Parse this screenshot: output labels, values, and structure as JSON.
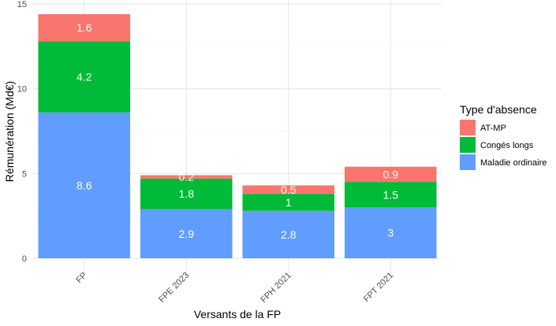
{
  "chart_data": {
    "type": "bar",
    "stacked": true,
    "title": "",
    "xlabel": "Versants de la FP",
    "ylabel": "Rémunération (Md€)",
    "categories": [
      "FP",
      "FPE 2023",
      "FPH 2021",
      "FPT 2021"
    ],
    "series": [
      {
        "name": "Maladie ordinaire",
        "color": "#619CFF",
        "values": [
          8.6,
          2.9,
          2.8,
          3
        ],
        "labels": [
          "8.6",
          "2.9",
          "2.8",
          "3"
        ]
      },
      {
        "name": "Congés longs",
        "color": "#00BA38",
        "values": [
          4.2,
          1.8,
          1,
          1.5
        ],
        "labels": [
          "4.2",
          "1.8",
          "1",
          "1.5"
        ]
      },
      {
        "name": "AT-MP",
        "color": "#F8766D",
        "values": [
          1.6,
          0.2,
          0.5,
          0.9
        ],
        "labels": [
          "1.6",
          "0.2",
          "0.5",
          "0.9"
        ]
      }
    ],
    "ylim": [
      0,
      15
    ],
    "yticks": [
      0,
      5,
      10,
      15
    ],
    "ytick_labels": [
      "0",
      "5",
      "10",
      "15"
    ],
    "grid": true,
    "legend": {
      "title": "Type d'absence",
      "placement": "right",
      "entries": [
        "AT-MP",
        "Congés longs",
        "Maladie ordinaire"
      ]
    }
  }
}
